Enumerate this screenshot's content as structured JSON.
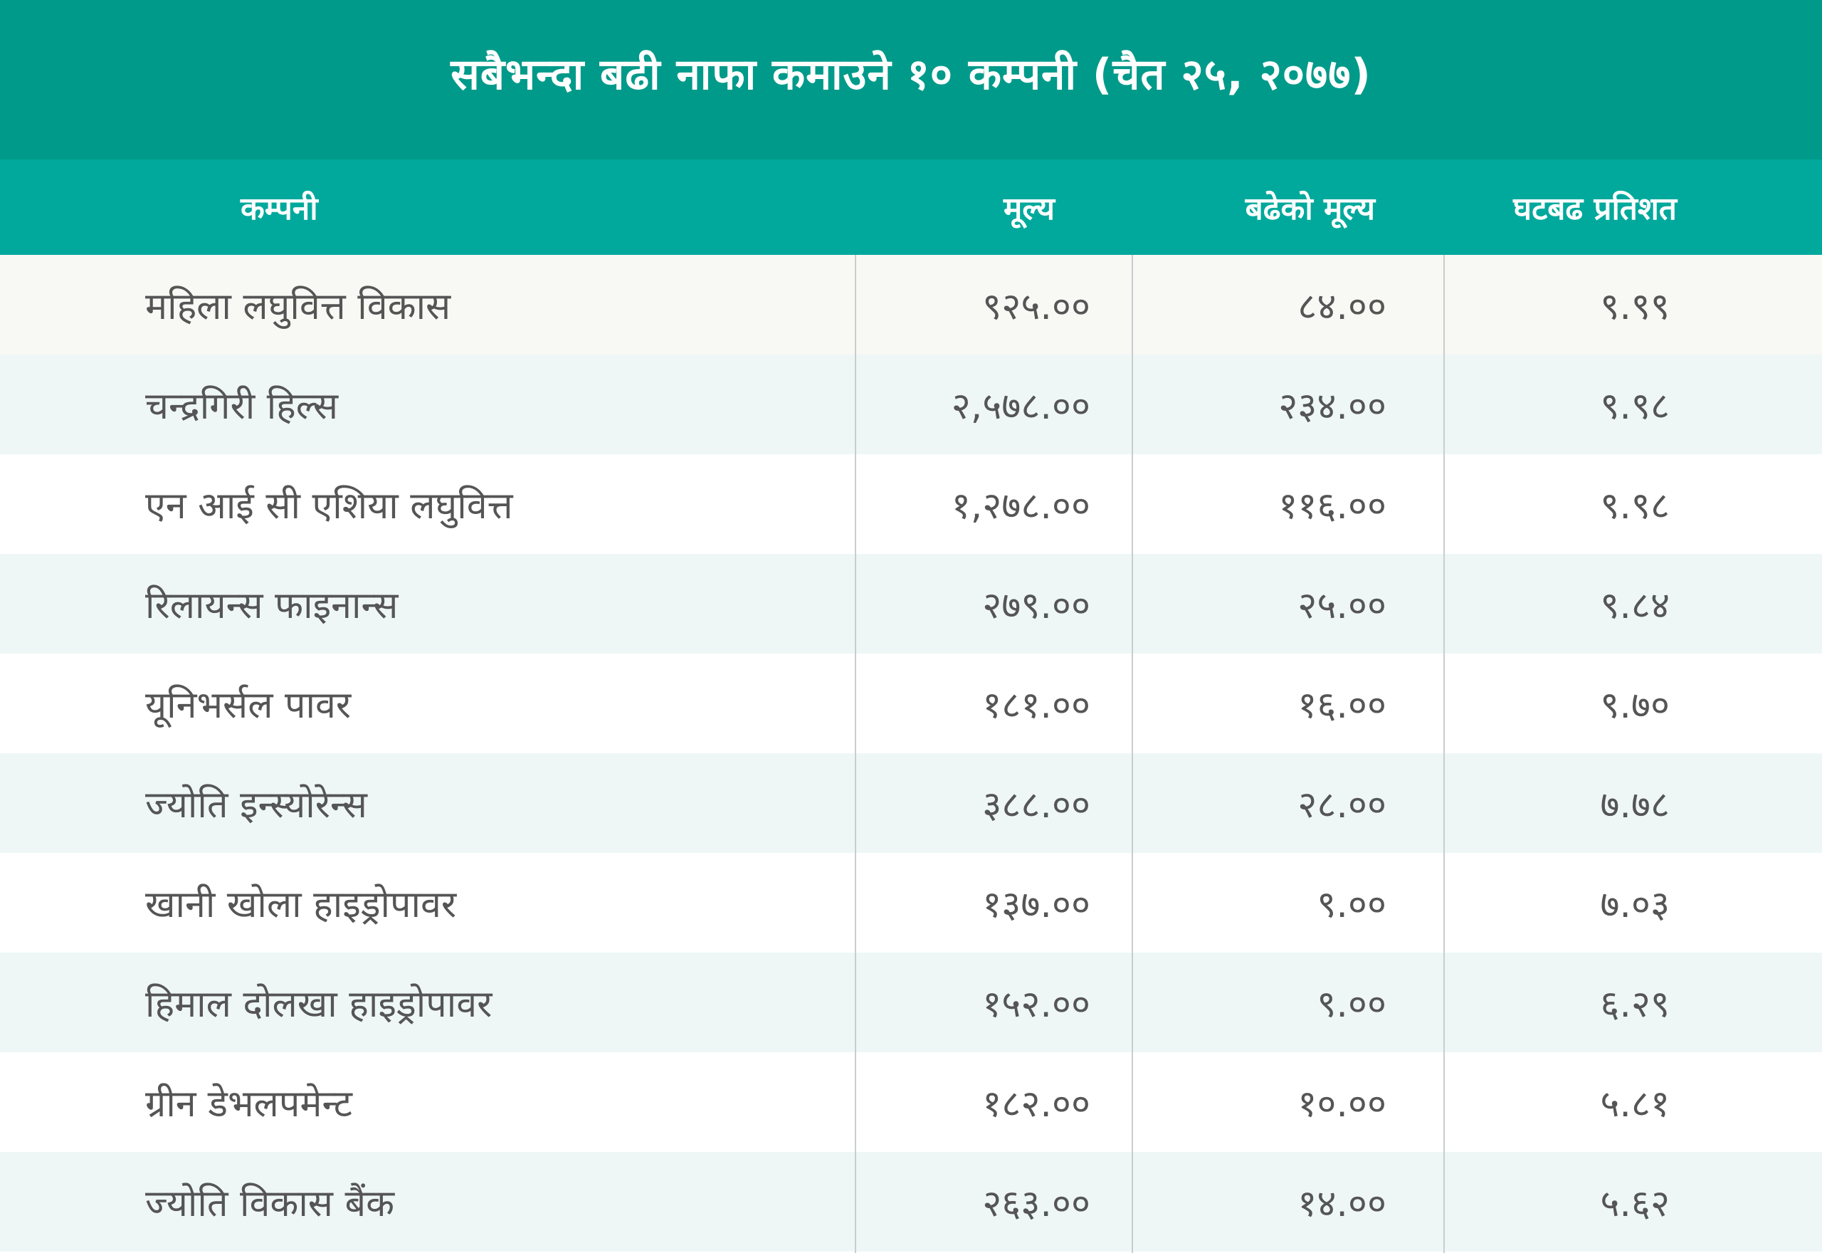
{
  "chart_data": {
    "type": "table",
    "title": "सबैभन्दा बढी नाफा कमाउने १० कम्पनी (चैत २५, २०७७)",
    "columns": [
      "कम्पनी",
      "मूल्य",
      "बढेको मूल्य",
      "घटबढ प्रतिशत"
    ],
    "rows": [
      {
        "company": "महिला लघुवित्त विकास",
        "price": "९२५.००",
        "increase": "८४.००",
        "percent": "९.९९"
      },
      {
        "company": "चन्द्रगिरी हिल्स",
        "price": "२,५७८.००",
        "increase": "२३४.००",
        "percent": "९.९८"
      },
      {
        "company": "एन आई सी एशिया लघुवित्त",
        "price": "१,२७८.००",
        "increase": "११६.००",
        "percent": "९.९८"
      },
      {
        "company": "रिलायन्स फाइनान्स",
        "price": "२७९.००",
        "increase": "२५.००",
        "percent": "९.८४"
      },
      {
        "company": "यूनिभर्सल पावर",
        "price": "१८१.००",
        "increase": "१६.००",
        "percent": "९.७०"
      },
      {
        "company": "ज्योति इन्स्योरेन्स",
        "price": "३८८.००",
        "increase": "२८.००",
        "percent": "७.७८"
      },
      {
        "company": "खानी खोला हाइड्रोपावर",
        "price": "१३७.००",
        "increase": "९.००",
        "percent": "७.०३"
      },
      {
        "company": "हिमाल दोलखा हाइड्रोपावर",
        "price": "१५२.००",
        "increase": "९.००",
        "percent": "६.२९"
      },
      {
        "company": "ग्रीन डेभलपमेन्ट",
        "price": "१८२.००",
        "increase": "१०.००",
        "percent": "५.८१"
      },
      {
        "company": "ज्योति विकास बैंक",
        "price": "२६३.००",
        "increase": "१४.००",
        "percent": "५.६२"
      }
    ]
  },
  "colors": {
    "title_bg": "#009a8a",
    "header_bg": "#00a99c",
    "header_text": "#ffffff",
    "row_first": "#f8f8f5",
    "row_alt": "#eef7f6",
    "row_plain": "#ffffff",
    "cell_text": "#555555",
    "divider": "#c9cdcd"
  }
}
